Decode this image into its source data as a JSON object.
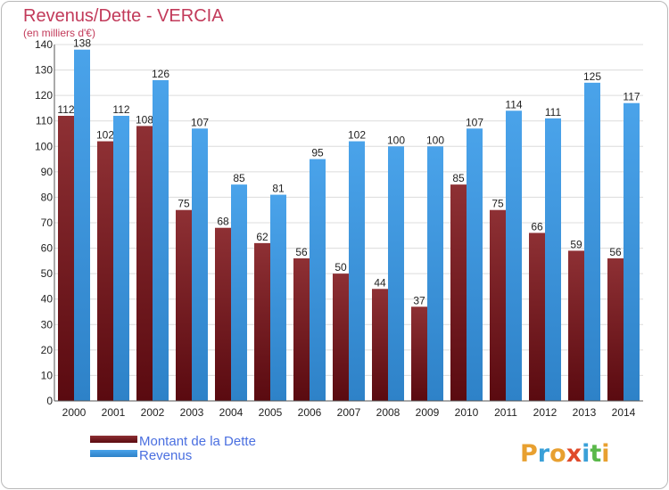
{
  "chart_data": {
    "type": "bar",
    "title": "Revenus/Dette - VERCIA",
    "subtitle": "(en milliers d'€)",
    "categories": [
      "2000",
      "2001",
      "2002",
      "2003",
      "2004",
      "2005",
      "2006",
      "2007",
      "2008",
      "2009",
      "2010",
      "2011",
      "2012",
      "2013",
      "2014"
    ],
    "series": [
      {
        "name": "Montant de la Dette",
        "color": "#7a1f25",
        "values": [
          112,
          102,
          108,
          75,
          68,
          62,
          56,
          50,
          44,
          37,
          85,
          75,
          66,
          59,
          56
        ]
      },
      {
        "name": "Revenus",
        "color": "#3f97df",
        "values": [
          138,
          112,
          126,
          107,
          85,
          81,
          95,
          102,
          100,
          100,
          107,
          114,
          111,
          125,
          117
        ]
      }
    ],
    "ylim": [
      0,
      140
    ],
    "ytick_step": 10,
    "grid": true,
    "legend_position": "bottom-left"
  },
  "logo": {
    "text": "Proxiti",
    "colors": [
      "#e8a030",
      "#3aa0d8",
      "#e8a030",
      "#e04a2a",
      "#3aa0d8",
      "#5ab84a",
      "#e8a030"
    ]
  }
}
